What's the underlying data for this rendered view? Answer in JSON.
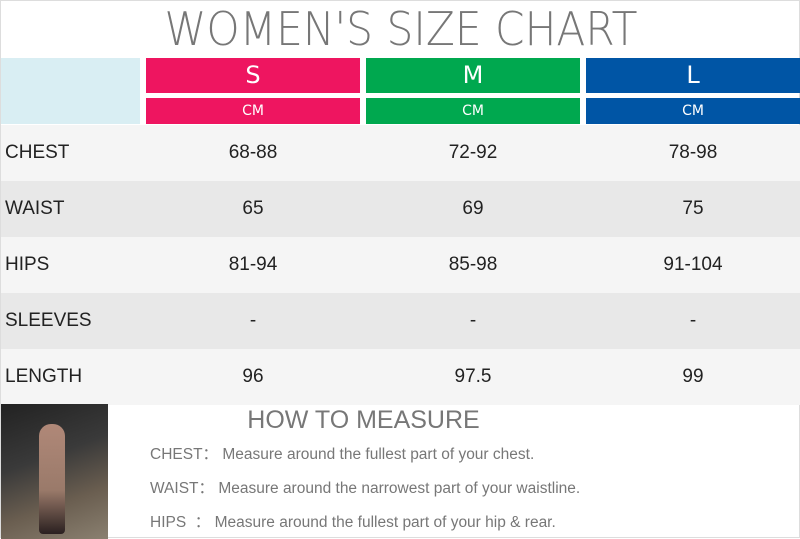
{
  "title": "WOMEN'S SIZE CHART",
  "sizes": [
    {
      "label": "S",
      "unit": "CM",
      "color": "#ee1560"
    },
    {
      "label": "M",
      "unit": "CM",
      "color": "#00a84f"
    },
    {
      "label": "L",
      "unit": "CM",
      "color": "#0055a5"
    }
  ],
  "rows": [
    {
      "label": "CHEST",
      "values": [
        "68-88",
        "72-92",
        "78-98"
      ]
    },
    {
      "label": "WAIST",
      "values": [
        "65",
        "69",
        "75"
      ]
    },
    {
      "label": "HIPS",
      "values": [
        "81-94",
        "85-98",
        "91-104"
      ]
    },
    {
      "label": "SLEEVES",
      "values": [
        "-",
        "-",
        "-"
      ]
    },
    {
      "label": "LENGTH",
      "values": [
        "96",
        "97.5",
        "99"
      ]
    }
  ],
  "how_to_measure": {
    "title": "HOW TO MEASURE",
    "items": [
      {
        "key": "CHEST：",
        "text": "Measure around the fullest part of your chest."
      },
      {
        "key": "WAIST：",
        "text": "Measure around the narrowest part of your waistline."
      },
      {
        "key": "HIPS  ：",
        "text": "Measure around the fullest part of your hip & rear."
      }
    ]
  }
}
